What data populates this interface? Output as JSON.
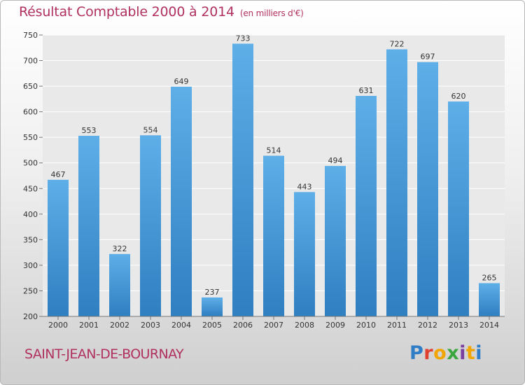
{
  "header": {
    "title": "Résultat Comptable 2000 à 2014",
    "subtitle": "(en milliers d'€)"
  },
  "footer": {
    "commune": "SAINT-JEAN-DE-BOURNAY",
    "logo_text": "Proxiti",
    "logo_letter_colors": [
      "#2e7dc6",
      "#e13f2f",
      "#f0a500",
      "#3aa63d",
      "#7b3fa0",
      "#f0a500",
      "#2e7dc6"
    ]
  },
  "chart_data": {
    "type": "bar",
    "title": "Résultat Comptable 2000 à 2014",
    "subtitle": "(en milliers d'€)",
    "xlabel": "",
    "ylabel": "",
    "categories": [
      "2000",
      "2001",
      "2002",
      "2003",
      "2004",
      "2005",
      "2006",
      "2007",
      "2008",
      "2009",
      "2010",
      "2011",
      "2012",
      "2013",
      "2014"
    ],
    "values": [
      467,
      553,
      322,
      554,
      649,
      237,
      733,
      514,
      443,
      494,
      631,
      722,
      697,
      620,
      265
    ],
    "ylim": [
      200,
      750
    ],
    "yticks": [
      200,
      250,
      300,
      350,
      400,
      450,
      500,
      550,
      600,
      650,
      700,
      750
    ],
    "grid": true,
    "bar_color_top": "#5eaee8",
    "bar_color_bottom": "#2f7fc1",
    "grid_color": "#ffffff"
  }
}
